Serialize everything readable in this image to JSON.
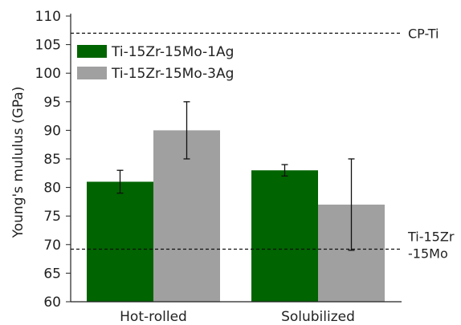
{
  "chart_data": {
    "type": "bar",
    "title": "",
    "xlabel": "",
    "ylabel": "Young's mululus (GPa)",
    "ylim": [
      60,
      110
    ],
    "yticks": [
      60,
      65,
      70,
      75,
      80,
      85,
      90,
      95,
      100,
      105,
      110
    ],
    "categories": [
      "Hot-rolled",
      "Solubilized"
    ],
    "series": [
      {
        "name": "Ti-15Zr-15Mo-1Ag",
        "values": [
          81,
          83
        ],
        "error": [
          2,
          1
        ],
        "color": "#006400"
      },
      {
        "name": "Ti-15Zr-15Mo-3Ag",
        "values": [
          90,
          77
        ],
        "error": [
          5,
          8
        ],
        "color": "#a0a0a0"
      }
    ],
    "reference_lines": [
      {
        "value": 107,
        "label_lines": [
          "CP-Ti"
        ]
      },
      {
        "value": 69.2,
        "label_lines": [
          "Ti-15Zr",
          "-15Mo"
        ]
      }
    ],
    "legend_position": "top-left",
    "grid": false
  }
}
